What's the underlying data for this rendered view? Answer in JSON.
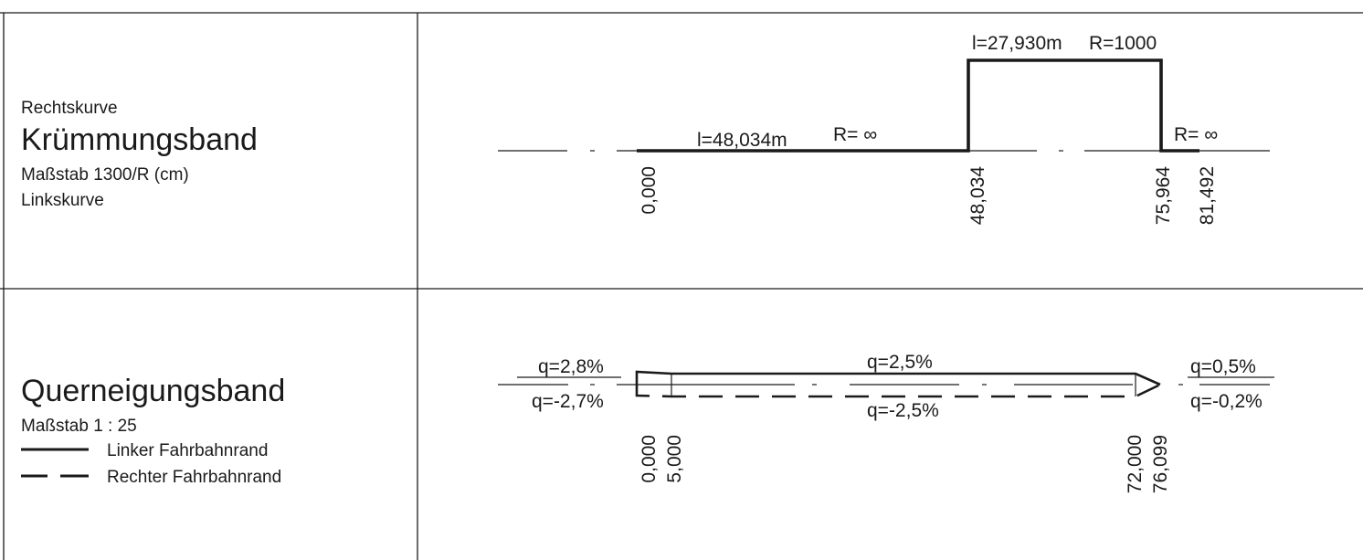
{
  "kruemmung": {
    "top_label": "Rechtskurve",
    "title": "Krümmungsband",
    "scale": "Maßstab 1300/R (cm)",
    "bottom_label": "Linkskurve",
    "seg1_length": "l=48,034m",
    "seg1_radius": "R= ∞",
    "seg2_length": "l=27,930m",
    "seg2_radius": "R=1000",
    "seg3_radius": "R= ∞",
    "stations": [
      "0,000",
      "48,034",
      "75,964",
      "81,492"
    ]
  },
  "querneigung": {
    "title": "Querneigungsband",
    "scale": "Maßstab 1 : 25",
    "legend_left": "Linker Fahrbahnrand",
    "legend_right": "Rechter Fahrbahnrand",
    "q_start_left": "q=2,8%",
    "q_start_right": "q=-2,7%",
    "q_mid_left": "q=2,5%",
    "q_mid_right": "q=-2,5%",
    "q_end_left": "q=0,5%",
    "q_end_right": "q=-0,2%",
    "stations": [
      "0,000",
      "5,000",
      "72,000",
      "76,099"
    ]
  }
}
